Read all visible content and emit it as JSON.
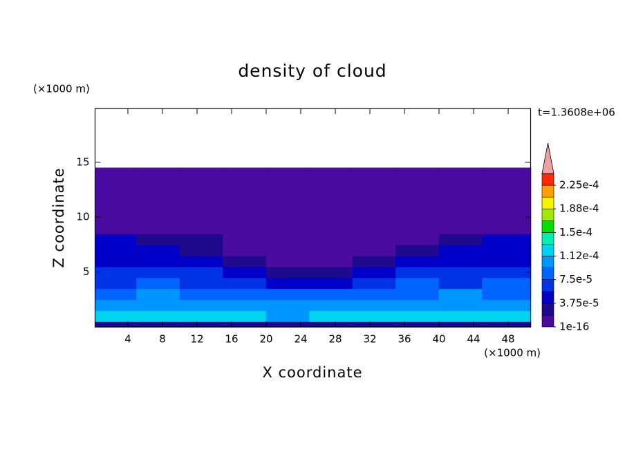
{
  "chart_data": {
    "type": "contour",
    "title": "density of cloud",
    "x_label": "X coordinate",
    "y_label": "Z coordinate",
    "x_unit": "(×1000 m)",
    "y_unit": "(×1000 m)",
    "time_label": "t=1.3608e+06",
    "xlim": [
      0.2,
      50.6
    ],
    "ylim": [
      0,
      19.9
    ],
    "xticks": [
      4,
      8,
      12,
      16,
      20,
      24,
      28,
      32,
      36,
      40,
      44,
      48
    ],
    "yticks": [
      5,
      10,
      15
    ],
    "x_edges": [
      0.2,
      5,
      10,
      15,
      20,
      25,
      30,
      35,
      40,
      45,
      50.6
    ],
    "z_edges": [
      0,
      0.5,
      1.5,
      2.5,
      3.5,
      4.5,
      5.5,
      6.5,
      7.5,
      8.5,
      14.5
    ],
    "values": [
      [
        2.5e-05,
        2e-05,
        2.5e-05,
        2e-05,
        2.5e-05,
        2e-05,
        2.5e-05,
        2e-05,
        2.5e-05,
        2e-05
      ],
      [
        0.00012,
        0.000125,
        0.000115,
        0.00012,
        0.00011,
        0.000115,
        0.00012,
        0.000125,
        0.00013,
        0.00012
      ],
      [
        0.000105,
        0.00011,
        0.0001,
        0.000105,
        0.0001,
        0.0001,
        0.000105,
        0.00011,
        0.000105,
        0.00011
      ],
      [
        9e-05,
        9.5e-05,
        9e-05,
        8.5e-05,
        8e-05,
        8.5e-05,
        9e-05,
        9e-05,
        9.5e-05,
        9e-05
      ],
      [
        7e-05,
        7.5e-05,
        7e-05,
        6.5e-05,
        4.5e-05,
        5e-05,
        7e-05,
        7.5e-05,
        7e-05,
        7.5e-05
      ],
      [
        6e-05,
        6.5e-05,
        6e-05,
        5.5e-05,
        3e-05,
        2e-05,
        5.5e-05,
        6e-05,
        6.5e-05,
        6e-05
      ],
      [
        5.5e-05,
        5.5e-05,
        5e-05,
        3e-05,
        1e-16,
        1e-16,
        3e-05,
        5e-05,
        5.5e-05,
        5.5e-05
      ],
      [
        4.5e-05,
        4.5e-05,
        3e-05,
        1e-16,
        1e-16,
        1e-16,
        1e-16,
        2.5e-05,
        4.5e-05,
        5e-05
      ],
      [
        4e-05,
        3.5e-05,
        2e-05,
        1e-16,
        1e-16,
        1e-16,
        1e-16,
        1e-16,
        2.5e-05,
        4e-05
      ],
      [
        1e-16,
        1e-16,
        1e-16,
        1e-16,
        1e-16,
        1e-16,
        1e-16,
        1e-16,
        1e-16,
        1e-16
      ]
    ],
    "colorbar": {
      "levels": [
        1e-16,
        1.875e-05,
        3.75e-05,
        5.625e-05,
        7.5e-05,
        9.375e-05,
        0.0001125,
        0.00013125,
        0.00015,
        0.00016875,
        0.0001875,
        0.00020625,
        0.000225,
        0.00024375
      ],
      "colors": [
        "#4b0aa0",
        "#1e0a8c",
        "#0000c8",
        "#0032e6",
        "#0064ff",
        "#0096ff",
        "#00d2f0",
        "#00f0b4",
        "#00e100",
        "#a0eb00",
        "#f5f500",
        "#ffa000",
        "#ff2800"
      ],
      "extend_color": "#f0a0a0",
      "ticks": [
        {
          "value": 1e-16,
          "label": "1e-16"
        },
        {
          "value": 3.75e-05,
          "label": "3.75e-5"
        },
        {
          "value": 7.5e-05,
          "label": "7.5e-5"
        },
        {
          "value": 0.0001125,
          "label": "1.12e-4"
        },
        {
          "value": 0.00015,
          "label": "1.5e-4"
        },
        {
          "value": 0.0001875,
          "label": "1.88e-4"
        },
        {
          "value": 0.000225,
          "label": "2.25e-4"
        }
      ]
    }
  }
}
